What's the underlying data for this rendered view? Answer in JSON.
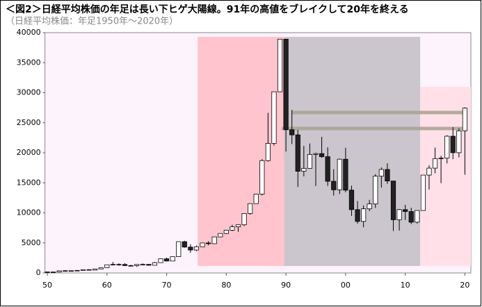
{
  "chart_data": {
    "type": "candlestick",
    "title": "＜図2＞日経平均株価の年足は長い下ヒゲ大陽線。91年の高値をブレイクして20年を終える",
    "subtitle": "（日経平均株価：年足1950年～2020年）",
    "x": [
      1950,
      1951,
      1952,
      1953,
      1954,
      1955,
      1956,
      1957,
      1958,
      1959,
      1960,
      1961,
      1962,
      1963,
      1964,
      1965,
      1966,
      1967,
      1968,
      1969,
      1970,
      1971,
      1972,
      1973,
      1974,
      1975,
      1976,
      1977,
      1978,
      1979,
      1980,
      1981,
      1982,
      1983,
      1984,
      1985,
      1986,
      1987,
      1988,
      1989,
      1990,
      1991,
      1992,
      1993,
      1994,
      1995,
      1996,
      1997,
      1998,
      1999,
      2000,
      2001,
      2002,
      2003,
      2004,
      2005,
      2006,
      2007,
      2008,
      2009,
      2010,
      2011,
      2012,
      2013,
      2014,
      2015,
      2016,
      2017,
      2018,
      2019,
      2020
    ],
    "open": [
      176,
      102,
      166,
      362,
      377,
      356,
      425,
      549,
      474,
      666,
      874,
      1356,
      1432,
      1420,
      1225,
      1216,
      1417,
      1430,
      1283,
      1715,
      2359,
      1987,
      2714,
      5208,
      4307,
      3817,
      4359,
      4991,
      4866,
      6002,
      6570,
      7116,
      7682,
      8017,
      9894,
      11543,
      13113,
      18701,
      21564,
      30159,
      38916,
      23849,
      22984,
      16925,
      17417,
      19723,
      19868,
      19361,
      15259,
      13842,
      18934,
      13785,
      10543,
      8579,
      10677,
      11488,
      16111,
      17225,
      15307,
      8859,
      10546,
      10228,
      8455,
      10395,
      16291,
      17450,
      19033,
      19114,
      22765,
      20015,
      23656
    ],
    "high": [
      176,
      170,
      362,
      474,
      400,
      425,
      549,
      595,
      666,
      874,
      1356,
      1829,
      1589,
      1634,
      1369,
      1417,
      1588,
      1506,
      1851,
      2359,
      2534,
      2740,
      5208,
      5359,
      4788,
      4564,
      4991,
      5287,
      6002,
      6590,
      7188,
      8019,
      8026,
      9894,
      11577,
      13128,
      18936,
      26646,
      30159,
      38916,
      38713,
      27147,
      23801,
      21148,
      21552,
      20012,
      22666,
      20910,
      17264,
      19036,
      20833,
      14529,
      11979,
      11238,
      12163,
      16445,
      17563,
      18262,
      15156,
      10639,
      11339,
      10857,
      10395,
      16291,
      17935,
      20868,
      19494,
      22939,
      24270,
      24066,
      27568
    ],
    "low": [
      85,
      100,
      165,
      295,
      315,
      351,
      420,
      472,
      474,
      656,
      869,
      1258,
      1216,
      1200,
      1202,
      1020,
      1364,
      1250,
      1266,
      1715,
      1929,
      1981,
      2712,
      4200,
      3355,
      3628,
      4358,
      4597,
      4866,
      5952,
      6475,
      6957,
      6850,
      7803,
      9703,
      11545,
      12881,
      18544,
      21217,
      30183,
      20222,
      21457,
      14309,
      16078,
      17369,
      14485,
      19161,
      14488,
      12879,
      13122,
      13423,
      9504,
      8197,
      7607,
      10299,
      10825,
      14218,
      14837,
      6994,
      7054,
      8824,
      8135,
      8238,
      10486,
      13885,
      16592,
      14952,
      18224,
      18948,
      19241,
      16358
    ],
    "close": [
      102,
      166,
      362,
      377,
      356,
      425,
      549,
      474,
      666,
      874,
      1356,
      1432,
      1420,
      1225,
      1216,
      1417,
      1430,
      1283,
      1715,
      2359,
      1987,
      2714,
      5208,
      4307,
      3817,
      4359,
      4991,
      4866,
      6002,
      6570,
      7116,
      7682,
      8017,
      9894,
      11543,
      13113,
      18701,
      21564,
      30159,
      38916,
      23849,
      22984,
      16925,
      17417,
      19723,
      19868,
      19361,
      15259,
      13842,
      18934,
      13785,
      10543,
      8579,
      10677,
      11488,
      16111,
      17225,
      15307,
      8859,
      10546,
      10228,
      8455,
      10395,
      16291,
      17450,
      19033,
      19114,
      22765,
      20015,
      23656,
      27444
    ],
    "up_color": "#ffffff",
    "down_color": "#222222",
    "edge_color": "#000000",
    "xlim": [
      1949.6,
      2021
    ],
    "xticks": [
      {
        "value": 1950,
        "label": "50"
      },
      {
        "value": 1960,
        "label": "60"
      },
      {
        "value": 1970,
        "label": "70"
      },
      {
        "value": 1980,
        "label": "80"
      },
      {
        "value": 1990,
        "label": "90"
      },
      {
        "value": 2000,
        "label": "00"
      },
      {
        "value": 2010,
        "label": "10"
      },
      {
        "value": 2020,
        "label": "20"
      }
    ],
    "ylim": [
      0,
      40000
    ],
    "yticks": [
      0,
      5000,
      10000,
      15000,
      20000,
      25000,
      30000,
      35000,
      40000
    ],
    "plot_background": "#fcf3fc",
    "shaded_regions": [
      {
        "x": [
          1975.2,
          1989.7
        ],
        "y": [
          1160,
          39300
        ],
        "color": "#ffc4cd"
      },
      {
        "x": [
          1989.7,
          2012.5
        ],
        "y": [
          1160,
          39300
        ],
        "color": "#cbc5cd"
      },
      {
        "x": [
          2012.5,
          2021
        ],
        "y": [
          1160,
          31000
        ],
        "color": "#ffe0e9"
      }
    ],
    "reference_lines": [
      {
        "y": 26700,
        "x": [
          1991,
          2020.2
        ],
        "color": "#a8a290"
      },
      {
        "y": 24050,
        "x": [
          1989.3,
          2020.2
        ],
        "color": "#a8a290"
      }
    ]
  }
}
